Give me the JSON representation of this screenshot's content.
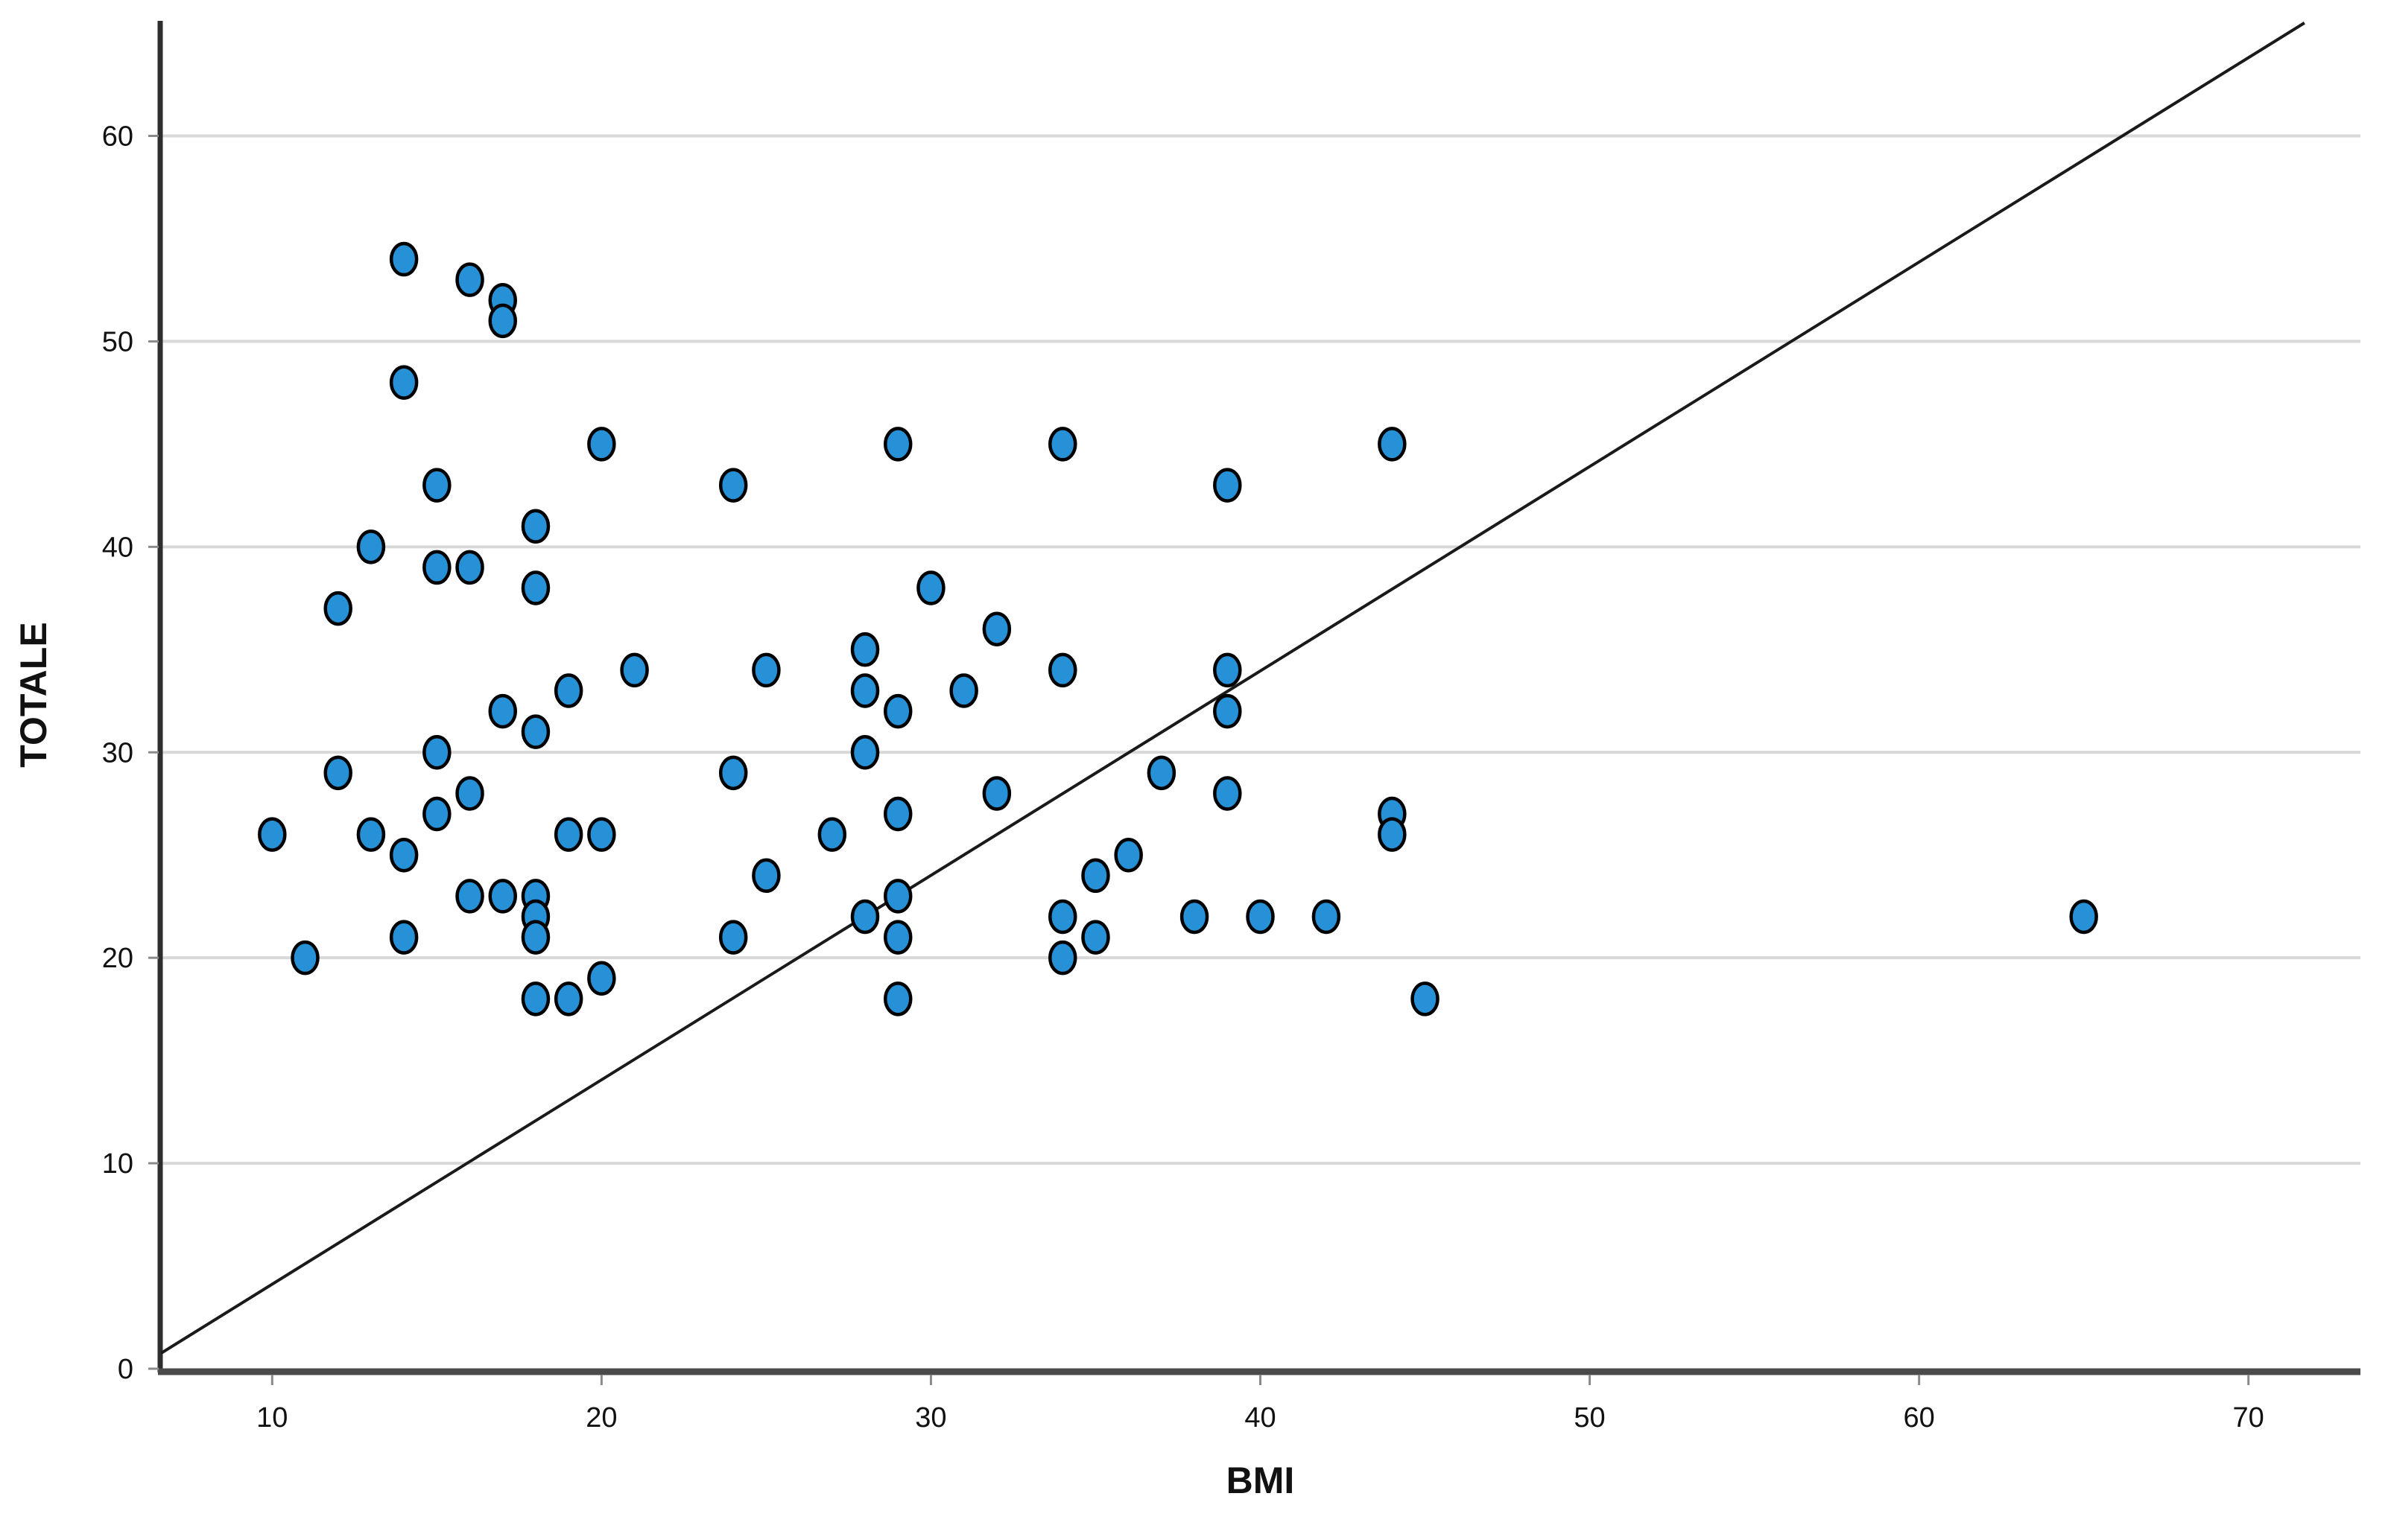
{
  "chart_data": {
    "type": "scatter",
    "title": "",
    "xlabel": "BMI",
    "ylabel": "TOTALE",
    "x_ticks": [
      10,
      20,
      30,
      40,
      50,
      60,
      70
    ],
    "y_ticks": [
      0,
      10,
      20,
      30,
      40,
      50,
      60
    ],
    "xlim": [
      6.6,
      73.4
    ],
    "ylim": [
      0,
      65.6
    ],
    "grid": "horizontal-only",
    "legend": "none",
    "point_color": "#2691d6",
    "point_stroke": "#000000",
    "gridline_color": "#d8d8d8",
    "axis_color": "#4a4a4a",
    "reference_line": {
      "x1": 6.63,
      "y1": 0.76,
      "x2": 71.7,
      "y2": 65.5,
      "color": "#1a1a1a"
    },
    "points": [
      [
        14,
        54
      ],
      [
        16,
        53
      ],
      [
        17,
        52
      ],
      [
        17,
        51
      ],
      [
        14,
        48
      ],
      [
        20,
        45
      ],
      [
        15,
        43
      ],
      [
        18,
        41
      ],
      [
        13,
        40
      ],
      [
        15,
        39
      ],
      [
        16,
        39
      ],
      [
        18,
        38
      ],
      [
        12,
        37
      ],
      [
        21,
        34
      ],
      [
        19,
        33
      ],
      [
        17,
        32
      ],
      [
        18,
        31
      ],
      [
        15,
        30
      ],
      [
        12,
        29
      ],
      [
        16,
        28
      ],
      [
        15,
        27
      ],
      [
        10,
        26
      ],
      [
        13,
        26
      ],
      [
        19,
        26
      ],
      [
        20,
        26
      ],
      [
        14,
        25
      ],
      [
        16,
        23
      ],
      [
        17,
        23
      ],
      [
        18,
        23
      ],
      [
        18,
        22
      ],
      [
        14,
        21
      ],
      [
        18,
        21
      ],
      [
        11,
        20
      ],
      [
        20,
        19
      ],
      [
        18,
        18
      ],
      [
        19,
        18
      ],
      [
        29,
        45
      ],
      [
        34,
        45
      ],
      [
        24,
        43
      ],
      [
        30,
        38
      ],
      [
        32,
        36
      ],
      [
        28,
        35
      ],
      [
        25,
        34
      ],
      [
        34,
        34
      ],
      [
        28,
        33
      ],
      [
        31,
        33
      ],
      [
        29,
        32
      ],
      [
        28,
        30
      ],
      [
        24,
        29
      ],
      [
        37,
        29
      ],
      [
        32,
        28
      ],
      [
        29,
        27
      ],
      [
        27,
        26
      ],
      [
        36,
        25
      ],
      [
        25,
        24
      ],
      [
        35,
        24
      ],
      [
        29,
        23
      ],
      [
        28,
        22
      ],
      [
        34,
        22
      ],
      [
        24,
        21
      ],
      [
        29,
        21
      ],
      [
        35,
        21
      ],
      [
        34,
        20
      ],
      [
        29,
        18
      ],
      [
        44,
        45
      ],
      [
        39,
        43
      ],
      [
        39,
        34
      ],
      [
        39,
        32
      ],
      [
        39,
        28
      ],
      [
        44,
        27
      ],
      [
        44,
        26
      ],
      [
        38,
        22
      ],
      [
        40,
        22
      ],
      [
        42,
        22
      ],
      [
        45,
        18
      ],
      [
        65,
        22
      ]
    ]
  }
}
